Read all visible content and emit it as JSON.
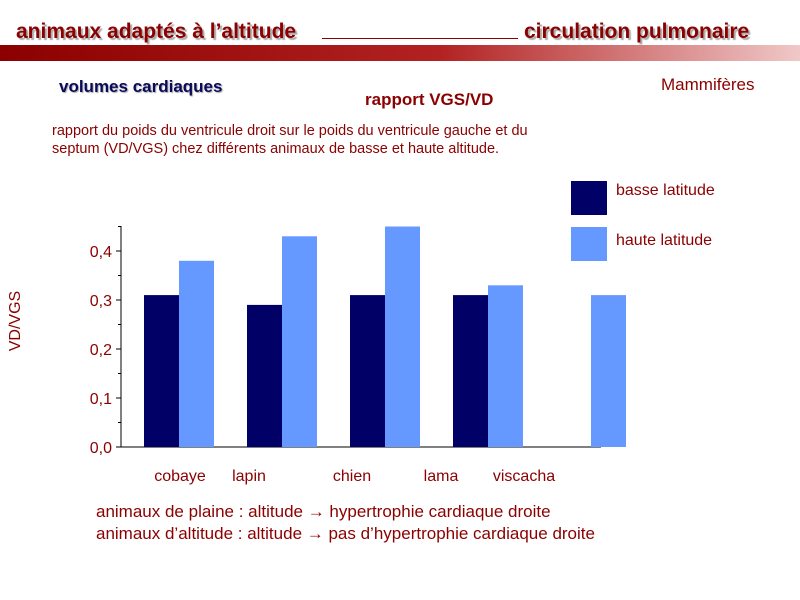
{
  "header": {
    "left_title": "animaux adaptés à l’altitude",
    "right_title": "circulation pulmonaire"
  },
  "section_title": "volumes cardiaques",
  "group_label": "Mammifères",
  "description": "rapport du poids du ventricule droit sur le poids du ventricule gauche et du septum (VD/VGS) chez différents animaux de basse et haute altitude.",
  "colors": {
    "basse": "#000066",
    "haute": "#6699ff",
    "text": "#8b0000"
  },
  "chart_data": {
    "type": "bar",
    "title": "rapport VGS/VD",
    "ylabel": "VD/VGS",
    "categories": [
      "cobaye",
      "lapin",
      "chien",
      "lama",
      "viscacha"
    ],
    "series": [
      {
        "name": "basse latitude",
        "color": "#000066",
        "values": [
          0.31,
          0.29,
          0.31,
          0.31,
          null
        ]
      },
      {
        "name": "haute latitude",
        "color": "#6699ff",
        "values": [
          0.38,
          0.43,
          0.45,
          0.33,
          0.31
        ]
      }
    ],
    "ylim": [
      0,
      0.45
    ],
    "yticks": [
      {
        "value": 0.0,
        "label": "0,0"
      },
      {
        "value": 0.1,
        "label": "0,1"
      },
      {
        "value": 0.2,
        "label": "0,2"
      },
      {
        "value": 0.3,
        "label": "0,3"
      },
      {
        "value": 0.4,
        "label": "0,4"
      }
    ],
    "grid": false,
    "legend_position": "top-right"
  },
  "notes": [
    "animaux de plaine : altitude → hypertrophie cardiaque droite",
    "animaux d’altitude : altitude → pas d’hypertrophie cardiaque droite"
  ]
}
